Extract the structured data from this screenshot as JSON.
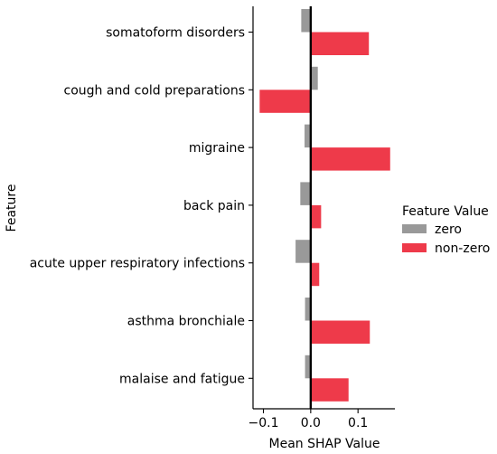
{
  "chart_data": {
    "type": "bar",
    "orientation": "horizontal",
    "categories": [
      "somatoform disorders",
      "cough and cold preparations",
      "migraine",
      "back pain",
      "acute upper respiratory infections",
      "asthma bronchiale",
      "malaise and fatigue"
    ],
    "series": [
      {
        "name": "zero",
        "color": "#999999",
        "values": [
          -0.02,
          0.015,
          -0.013,
          -0.022,
          -0.032,
          -0.012,
          -0.012
        ]
      },
      {
        "name": "non-zero",
        "color": "#ee3a4a",
        "values": [
          0.123,
          -0.108,
          0.168,
          0.022,
          0.018,
          0.125,
          0.08
        ]
      }
    ],
    "xlabel": "Mean SHAP Value",
    "ylabel": "Feature",
    "xlim": [
      -0.122,
      0.178
    ],
    "xticks": [
      -0.1,
      0.0,
      0.1
    ],
    "xtick_labels": [
      "−0.1",
      "0.0",
      "0.1"
    ],
    "grid": false,
    "zero_line": true,
    "legend": {
      "title": "Feature Value",
      "placement": "right",
      "entries": [
        "zero",
        "non-zero"
      ]
    }
  }
}
